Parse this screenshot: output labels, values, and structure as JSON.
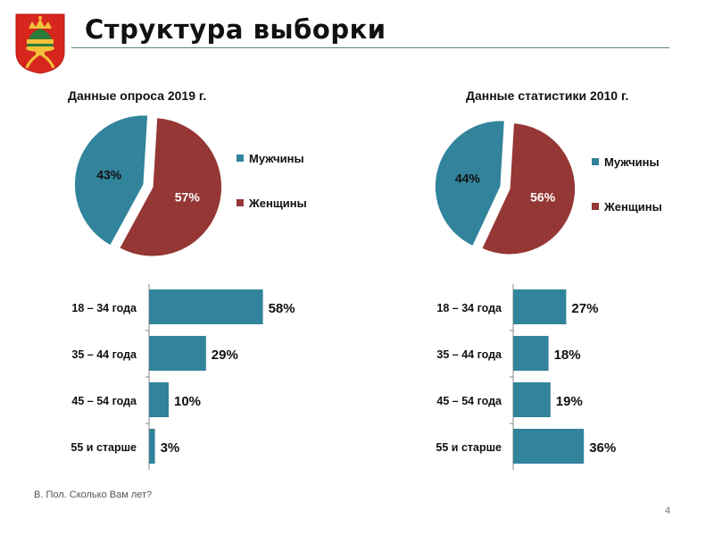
{
  "slide": {
    "title": "Структура выборки",
    "footnote": "В. Пол. Сколько Вам лет?",
    "page_number": "4",
    "colors": {
      "teal": "#31849b",
      "maroon": "#953735",
      "rule": "#5e7f86"
    }
  },
  "chart_data": [
    {
      "type": "pie",
      "title": "Данные опроса  2019 г.",
      "slices": [
        {
          "label": "Мужчины",
          "value": 43,
          "value_label": "43%",
          "color": "#31849b"
        },
        {
          "label": "Женщины",
          "value": 57,
          "value_label": "57%",
          "color": "#953735"
        }
      ],
      "legend": "right"
    },
    {
      "type": "pie",
      "title": "Данные статистики 2010 г.",
      "slices": [
        {
          "label": "Мужчины",
          "value": 44,
          "value_label": "44%",
          "color": "#31849b"
        },
        {
          "label": "Женщины",
          "value": 56,
          "value_label": "56%",
          "color": "#953735"
        }
      ],
      "legend": "right"
    },
    {
      "type": "bar",
      "orientation": "horizontal",
      "categories": [
        "18 – 34 года",
        "35 – 44 года",
        "45 – 54 года",
        "55 и старше"
      ],
      "values": [
        58,
        29,
        10,
        3
      ],
      "value_labels": [
        "58%",
        "29%",
        "10%",
        "3%"
      ],
      "xlim": [
        0,
        100
      ],
      "color": "#31849b"
    },
    {
      "type": "bar",
      "orientation": "horizontal",
      "categories": [
        "18 – 34 года",
        "35 – 44 года",
        "45 – 54 года",
        "55 и старше"
      ],
      "values": [
        27,
        18,
        19,
        36
      ],
      "value_labels": [
        "27%",
        "18%",
        "19%",
        "36%"
      ],
      "xlim": [
        0,
        100
      ],
      "color": "#31849b"
    }
  ]
}
